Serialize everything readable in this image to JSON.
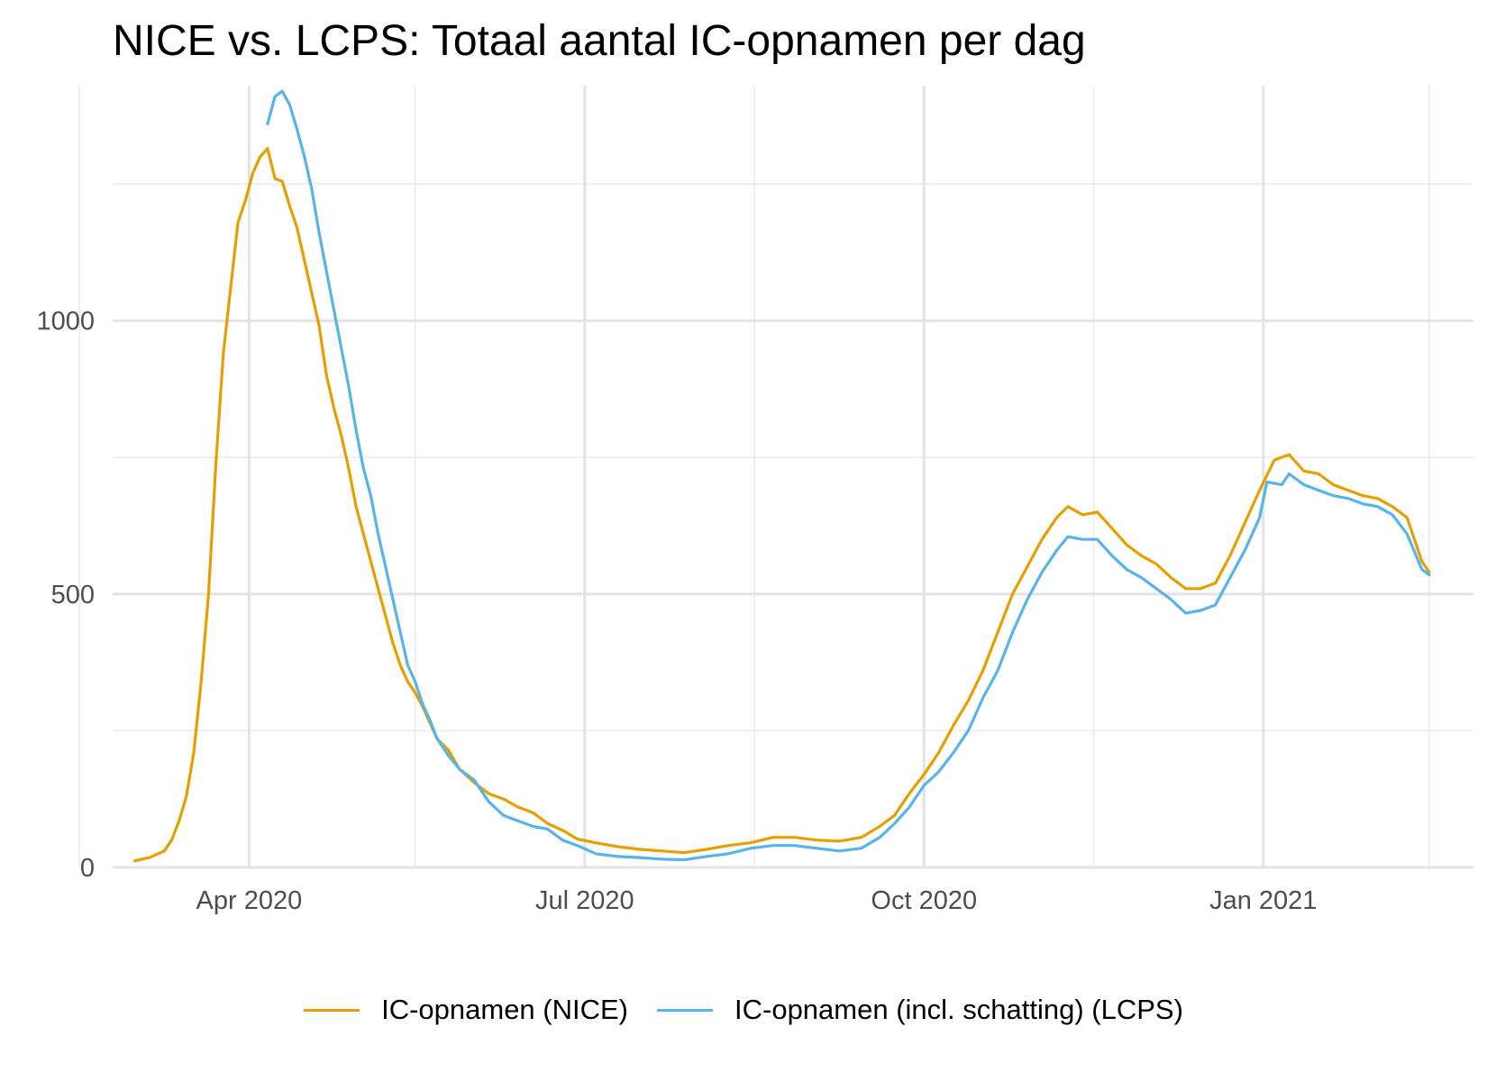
{
  "chart_data": {
    "type": "line",
    "title": "NICE vs. LCPS: Totaal aantal IC-opnamen per dag",
    "xlabel": "",
    "ylabel": "",
    "ylim": [
      0,
      1430
    ],
    "xlim": [
      "2020-02-24",
      "2021-02-27"
    ],
    "x_ticks": [
      {
        "date": "2020-04-01",
        "label": "Apr 2020"
      },
      {
        "date": "2020-07-01",
        "label": "Jul 2020"
      },
      {
        "date": "2020-10-01",
        "label": "Oct 2020"
      },
      {
        "date": "2021-01-01",
        "label": "Jan 2021"
      }
    ],
    "x_minor_ticks": [
      "2020-02-15",
      "2020-05-16",
      "2020-08-16",
      "2020-11-16",
      "2021-02-15"
    ],
    "y_ticks": [
      {
        "value": 0,
        "label": "0"
      },
      {
        "value": 500,
        "label": "500"
      },
      {
        "value": 1000,
        "label": "1000"
      }
    ],
    "y_minor_ticks": [
      250,
      750,
      1250
    ],
    "legend_position": "bottom",
    "series": [
      {
        "name": "IC-opnamen (NICE)",
        "color": "#E69F00",
        "points": [
          [
            "2020-03-01",
            12
          ],
          [
            "2020-03-05",
            18
          ],
          [
            "2020-03-09",
            30
          ],
          [
            "2020-03-11",
            50
          ],
          [
            "2020-03-13",
            85
          ],
          [
            "2020-03-15",
            130
          ],
          [
            "2020-03-17",
            210
          ],
          [
            "2020-03-19",
            340
          ],
          [
            "2020-03-21",
            500
          ],
          [
            "2020-03-23",
            740
          ],
          [
            "2020-03-25",
            940
          ],
          [
            "2020-03-27",
            1060
          ],
          [
            "2020-03-29",
            1180
          ],
          [
            "2020-03-31",
            1220
          ],
          [
            "2020-04-02",
            1270
          ],
          [
            "2020-04-04",
            1300
          ],
          [
            "2020-04-06",
            1315
          ],
          [
            "2020-04-08",
            1260
          ],
          [
            "2020-04-10",
            1255
          ],
          [
            "2020-04-12",
            1210
          ],
          [
            "2020-04-14",
            1170
          ],
          [
            "2020-04-16",
            1110
          ],
          [
            "2020-04-18",
            1050
          ],
          [
            "2020-04-20",
            990
          ],
          [
            "2020-04-22",
            900
          ],
          [
            "2020-04-24",
            840
          ],
          [
            "2020-04-26",
            790
          ],
          [
            "2020-04-28",
            730
          ],
          [
            "2020-04-30",
            660
          ],
          [
            "2020-05-02",
            610
          ],
          [
            "2020-05-04",
            560
          ],
          [
            "2020-05-06",
            510
          ],
          [
            "2020-05-08",
            460
          ],
          [
            "2020-05-10",
            410
          ],
          [
            "2020-05-12",
            370
          ],
          [
            "2020-05-14",
            340
          ],
          [
            "2020-05-16",
            320
          ],
          [
            "2020-05-18",
            295
          ],
          [
            "2020-05-20",
            265
          ],
          [
            "2020-05-22",
            235
          ],
          [
            "2020-05-25",
            215
          ],
          [
            "2020-05-28",
            180
          ],
          [
            "2020-06-01",
            155
          ],
          [
            "2020-06-05",
            135
          ],
          [
            "2020-06-09",
            125
          ],
          [
            "2020-06-13",
            110
          ],
          [
            "2020-06-17",
            100
          ],
          [
            "2020-06-21",
            80
          ],
          [
            "2020-06-25",
            68
          ],
          [
            "2020-06-29",
            52
          ],
          [
            "2020-07-04",
            45
          ],
          [
            "2020-07-10",
            38
          ],
          [
            "2020-07-16",
            33
          ],
          [
            "2020-07-22",
            30
          ],
          [
            "2020-07-28",
            27
          ],
          [
            "2020-08-03",
            33
          ],
          [
            "2020-08-09",
            40
          ],
          [
            "2020-08-15",
            45
          ],
          [
            "2020-08-21",
            55
          ],
          [
            "2020-08-27",
            55
          ],
          [
            "2020-09-02",
            50
          ],
          [
            "2020-09-08",
            48
          ],
          [
            "2020-09-14",
            55
          ],
          [
            "2020-09-19",
            75
          ],
          [
            "2020-09-23",
            95
          ],
          [
            "2020-09-27",
            135
          ],
          [
            "2020-10-01",
            170
          ],
          [
            "2020-10-05",
            210
          ],
          [
            "2020-10-09",
            260
          ],
          [
            "2020-10-13",
            305
          ],
          [
            "2020-10-17",
            360
          ],
          [
            "2020-10-21",
            430
          ],
          [
            "2020-10-25",
            500
          ],
          [
            "2020-10-29",
            550
          ],
          [
            "2020-11-02",
            600
          ],
          [
            "2020-11-06",
            640
          ],
          [
            "2020-11-09",
            660
          ],
          [
            "2020-11-13",
            645
          ],
          [
            "2020-11-17",
            650
          ],
          [
            "2020-11-21",
            620
          ],
          [
            "2020-11-25",
            590
          ],
          [
            "2020-11-29",
            570
          ],
          [
            "2020-12-03",
            555
          ],
          [
            "2020-12-07",
            530
          ],
          [
            "2020-12-11",
            510
          ],
          [
            "2020-12-15",
            510
          ],
          [
            "2020-12-19",
            520
          ],
          [
            "2020-12-23",
            570
          ],
          [
            "2020-12-27",
            630
          ],
          [
            "2020-12-31",
            690
          ],
          [
            "2021-01-04",
            745
          ],
          [
            "2021-01-08",
            755
          ],
          [
            "2021-01-12",
            725
          ],
          [
            "2021-01-16",
            720
          ],
          [
            "2021-01-20",
            700
          ],
          [
            "2021-01-24",
            690
          ],
          [
            "2021-01-28",
            680
          ],
          [
            "2021-02-01",
            675
          ],
          [
            "2021-02-05",
            660
          ],
          [
            "2021-02-09",
            640
          ],
          [
            "2021-02-13",
            560
          ],
          [
            "2021-02-15",
            540
          ]
        ]
      },
      {
        "name": "IC-opnamen (incl. schatting) (LCPS)",
        "color": "#56B4E9",
        "points": [
          [
            "2020-04-06",
            1360
          ],
          [
            "2020-04-08",
            1410
          ],
          [
            "2020-04-10",
            1420
          ],
          [
            "2020-04-12",
            1395
          ],
          [
            "2020-04-14",
            1350
          ],
          [
            "2020-04-16",
            1300
          ],
          [
            "2020-04-18",
            1240
          ],
          [
            "2020-04-20",
            1160
          ],
          [
            "2020-04-22",
            1090
          ],
          [
            "2020-04-24",
            1020
          ],
          [
            "2020-04-26",
            950
          ],
          [
            "2020-04-28",
            880
          ],
          [
            "2020-04-30",
            800
          ],
          [
            "2020-05-02",
            730
          ],
          [
            "2020-05-04",
            680
          ],
          [
            "2020-05-06",
            610
          ],
          [
            "2020-05-08",
            550
          ],
          [
            "2020-05-10",
            490
          ],
          [
            "2020-05-12",
            430
          ],
          [
            "2020-05-14",
            370
          ],
          [
            "2020-05-16",
            340
          ],
          [
            "2020-05-18",
            300
          ],
          [
            "2020-05-20",
            270
          ],
          [
            "2020-05-22",
            235
          ],
          [
            "2020-05-25",
            205
          ],
          [
            "2020-05-28",
            180
          ],
          [
            "2020-06-01",
            160
          ],
          [
            "2020-06-05",
            120
          ],
          [
            "2020-06-09",
            95
          ],
          [
            "2020-06-13",
            85
          ],
          [
            "2020-06-17",
            75
          ],
          [
            "2020-06-21",
            70
          ],
          [
            "2020-06-25",
            50
          ],
          [
            "2020-06-29",
            40
          ],
          [
            "2020-07-04",
            25
          ],
          [
            "2020-07-10",
            20
          ],
          [
            "2020-07-16",
            18
          ],
          [
            "2020-07-22",
            15
          ],
          [
            "2020-07-28",
            14
          ],
          [
            "2020-08-03",
            20
          ],
          [
            "2020-08-09",
            25
          ],
          [
            "2020-08-15",
            35
          ],
          [
            "2020-08-21",
            40
          ],
          [
            "2020-08-27",
            40
          ],
          [
            "2020-09-02",
            35
          ],
          [
            "2020-09-08",
            30
          ],
          [
            "2020-09-14",
            35
          ],
          [
            "2020-09-19",
            55
          ],
          [
            "2020-09-23",
            80
          ],
          [
            "2020-09-27",
            110
          ],
          [
            "2020-10-01",
            150
          ],
          [
            "2020-10-05",
            175
          ],
          [
            "2020-10-09",
            210
          ],
          [
            "2020-10-13",
            250
          ],
          [
            "2020-10-17",
            310
          ],
          [
            "2020-10-21",
            360
          ],
          [
            "2020-10-25",
            430
          ],
          [
            "2020-10-29",
            490
          ],
          [
            "2020-11-02",
            540
          ],
          [
            "2020-11-06",
            580
          ],
          [
            "2020-11-09",
            605
          ],
          [
            "2020-11-13",
            600
          ],
          [
            "2020-11-17",
            600
          ],
          [
            "2020-11-21",
            570
          ],
          [
            "2020-11-25",
            545
          ],
          [
            "2020-11-29",
            530
          ],
          [
            "2020-12-03",
            510
          ],
          [
            "2020-12-07",
            490
          ],
          [
            "2020-12-11",
            465
          ],
          [
            "2020-12-15",
            470
          ],
          [
            "2020-12-19",
            480
          ],
          [
            "2020-12-23",
            530
          ],
          [
            "2020-12-27",
            580
          ],
          [
            "2020-12-31",
            640
          ],
          [
            "2021-01-02",
            705
          ],
          [
            "2021-01-06",
            700
          ],
          [
            "2021-01-08",
            720
          ],
          [
            "2021-01-12",
            700
          ],
          [
            "2021-01-16",
            690
          ],
          [
            "2021-01-20",
            680
          ],
          [
            "2021-01-24",
            675
          ],
          [
            "2021-01-28",
            665
          ],
          [
            "2021-02-01",
            660
          ],
          [
            "2021-02-05",
            645
          ],
          [
            "2021-02-09",
            610
          ],
          [
            "2021-02-13",
            545
          ],
          [
            "2021-02-15",
            535
          ]
        ]
      }
    ]
  }
}
